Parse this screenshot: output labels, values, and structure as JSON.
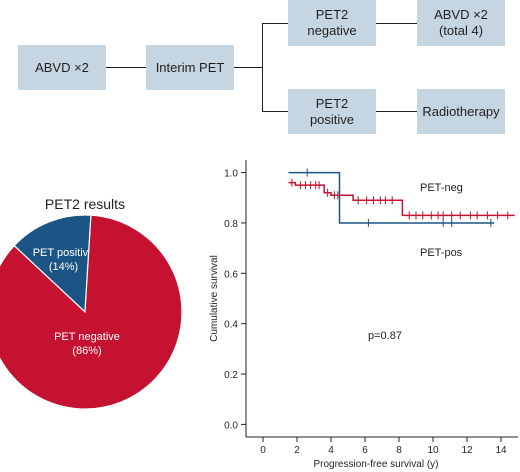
{
  "flowchart": {
    "start": "ABVD ×2",
    "interim": "Interim PET",
    "neg_line1": "PET2",
    "neg_line2": "negative",
    "pos_line1": "PET2",
    "pos_line2": "positive",
    "neg_tx_line1": "ABVD ×2",
    "neg_tx_line2": "(total 4)",
    "pos_tx": "Radiotherapy",
    "box_color": "#c5d5e2"
  },
  "chart_data": [
    {
      "type": "pie",
      "title": "PET2 results",
      "slices": [
        {
          "label": "PET positive",
          "pct_label": "(14%)",
          "value": 14,
          "color": "#1b5585"
        },
        {
          "label": "PET negative",
          "pct_label": "(86%)",
          "value": 86,
          "color": "#c41230"
        }
      ]
    },
    {
      "type": "line",
      "subtype": "kaplan-meier",
      "xlabel": "Progression-free survival (y)",
      "ylabel": "Cumulative survival",
      "xlim": [
        -1,
        15
      ],
      "ylim": [
        -0.05,
        1.05
      ],
      "xticks": [
        0,
        2,
        4,
        6,
        8,
        10,
        12,
        14
      ],
      "yticks": [
        "0.0",
        "0.2",
        "0.4",
        "0.6",
        "0.8",
        "1.0"
      ],
      "annotation": "p=0.87",
      "series": [
        {
          "name": "PET-neg",
          "color": "#c41230",
          "steps": [
            [
              1.5,
              0.96
            ],
            [
              1.9,
              0.95
            ],
            [
              3.6,
              0.92
            ],
            [
              4.0,
              0.91
            ],
            [
              5.3,
              0.89
            ],
            [
              8.2,
              0.83
            ],
            [
              14.8,
              0.83
            ]
          ],
          "censored": [
            [
              1.7,
              0.96
            ],
            [
              2.2,
              0.95
            ],
            [
              2.5,
              0.95
            ],
            [
              2.8,
              0.95
            ],
            [
              3.1,
              0.95
            ],
            [
              3.3,
              0.95
            ],
            [
              3.8,
              0.92
            ],
            [
              4.2,
              0.91
            ],
            [
              4.4,
              0.91
            ],
            [
              5.6,
              0.89
            ],
            [
              6.1,
              0.89
            ],
            [
              6.5,
              0.89
            ],
            [
              6.9,
              0.89
            ],
            [
              7.2,
              0.89
            ],
            [
              7.6,
              0.89
            ],
            [
              8.6,
              0.83
            ],
            [
              9.0,
              0.83
            ],
            [
              9.4,
              0.83
            ],
            [
              9.9,
              0.83
            ],
            [
              10.3,
              0.83
            ],
            [
              10.6,
              0.83
            ],
            [
              11.1,
              0.83
            ],
            [
              11.6,
              0.83
            ],
            [
              12.2,
              0.83
            ],
            [
              12.6,
              0.83
            ],
            [
              13.2,
              0.83
            ],
            [
              13.8,
              0.83
            ],
            [
              14.4,
              0.83
            ]
          ]
        },
        {
          "name": "PET-pos",
          "color": "#1b5585",
          "steps": [
            [
              1.5,
              1.0
            ],
            [
              4.5,
              0.8
            ],
            [
              13.6,
              0.8
            ]
          ],
          "censored": [
            [
              2.6,
              1.0
            ],
            [
              6.2,
              0.8
            ],
            [
              10.6,
              0.8
            ],
            [
              11.1,
              0.8
            ],
            [
              13.4,
              0.8
            ]
          ]
        }
      ]
    }
  ]
}
